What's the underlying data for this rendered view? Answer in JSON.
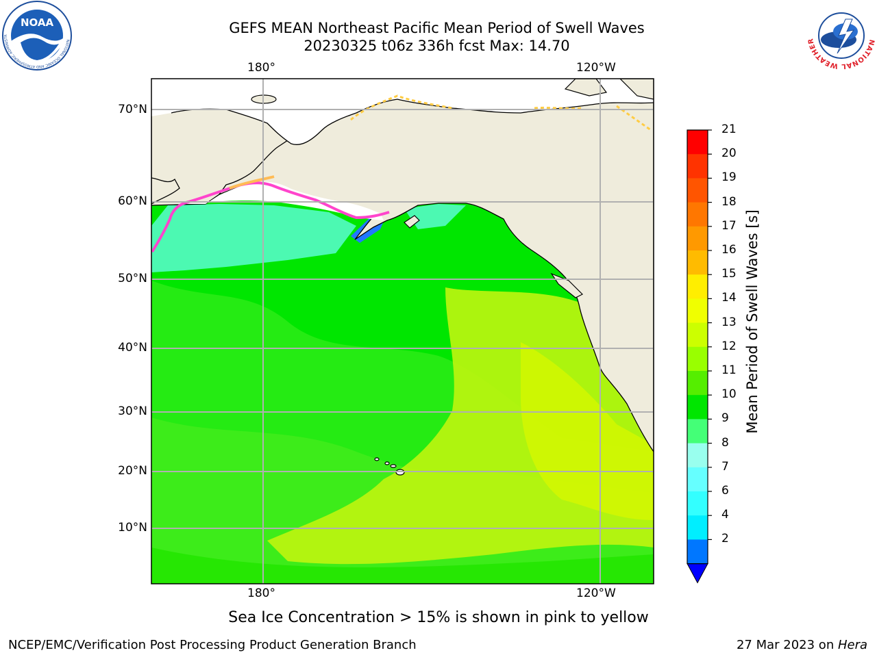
{
  "title": {
    "line1": "GEFS MEAN Northeast Pacific Mean Period of Swell Waves",
    "line2": "20230325 t06z 336h fcst   Max: 14.70"
  },
  "map": {
    "longitude_labels": [
      "180°",
      "120°W"
    ],
    "latitude_labels": [
      "70°N",
      "60°N",
      "50°N",
      "40°N",
      "30°N",
      "20°N",
      "10°N"
    ],
    "colors": {
      "land": "#efecdc",
      "ocean_main": "#00e600",
      "ocean_light": "#55ee22",
      "ocean_yellow": "#ccf500",
      "ice_sea": "#66ffee",
      "ice_pink": "#ff44cc",
      "ice_orange": "#ffbb44",
      "grid": "#b0b0b0"
    }
  },
  "colorbar": {
    "title": "Mean Period of Swell Waves [s]",
    "ticks": [
      "21",
      "20",
      "19",
      "18",
      "17",
      "16",
      "15",
      "14",
      "13",
      "12",
      "11",
      "10",
      "9",
      "8",
      "7",
      "6",
      "4",
      "2"
    ],
    "colors": [
      "#ff0000",
      "#ff3300",
      "#ff5500",
      "#ff7700",
      "#ff9900",
      "#ffbb00",
      "#ffee00",
      "#f0ff00",
      "#ccff00",
      "#99ff00",
      "#55ee00",
      "#00e600",
      "#44ff77",
      "#99ffee",
      "#66ffff",
      "#33ffff",
      "#00eeff",
      "#0077ff"
    ],
    "extend_color": "#0000ff"
  },
  "note": "Sea Ice Concentration > 15% is shown in pink to yellow",
  "footer": {
    "left": "NCEP/EMC/Verification Post Processing Product Generation Branch",
    "right_prefix": "27 Mar 2023 on ",
    "right_host": "Hera"
  },
  "logos": {
    "noaa": {
      "text": "NOAA",
      "ring": "NATIONAL OCEANIC AND ATMOSPHERIC ADMINISTRATION"
    },
    "nws": {
      "ring": "NATIONAL WEATHER SERVICE"
    }
  }
}
